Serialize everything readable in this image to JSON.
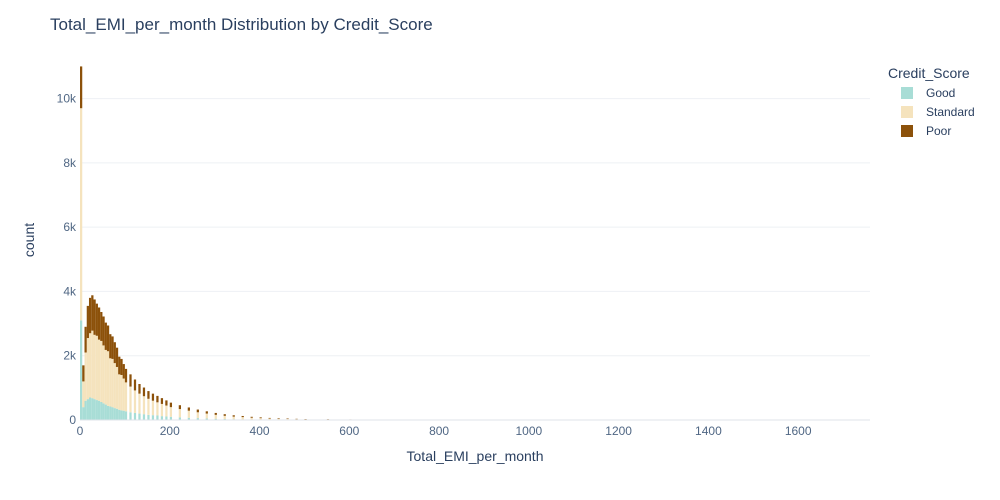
{
  "chart_data": {
    "type": "bar",
    "stacked": true,
    "title": "Total_EMI_per_month Distribution by Credit_Score",
    "xlabel": "Total_EMI_per_month",
    "ylabel": "count",
    "xlim": [
      0,
      1760
    ],
    "ylim": [
      0,
      11200
    ],
    "bin_width": 5,
    "x_ticks": [
      {
        "value": 0,
        "label": "0"
      },
      {
        "value": 200,
        "label": "200"
      },
      {
        "value": 400,
        "label": "400"
      },
      {
        "value": 600,
        "label": "600"
      },
      {
        "value": 800,
        "label": "800"
      },
      {
        "value": 1000,
        "label": "1000"
      },
      {
        "value": 1200,
        "label": "1200"
      },
      {
        "value": 1400,
        "label": "1400"
      },
      {
        "value": 1600,
        "label": "1600"
      }
    ],
    "y_ticks": [
      {
        "value": 0,
        "label": "0"
      },
      {
        "value": 2000,
        "label": "2k"
      },
      {
        "value": 4000,
        "label": "4k"
      },
      {
        "value": 6000,
        "label": "6k"
      },
      {
        "value": 8000,
        "label": "8k"
      },
      {
        "value": 10000,
        "label": "10k"
      }
    ],
    "grid": true,
    "legend": {
      "title": "Credit_Score",
      "placement": "top-right"
    },
    "series": [
      {
        "name": "Good",
        "color": "#a8ddd6",
        "points": [
          [
            0,
            3100
          ],
          [
            5,
            400
          ],
          [
            10,
            600
          ],
          [
            15,
            650
          ],
          [
            20,
            700
          ],
          [
            25,
            680
          ],
          [
            30,
            650
          ],
          [
            35,
            620
          ],
          [
            40,
            600
          ],
          [
            45,
            560
          ],
          [
            50,
            520
          ],
          [
            55,
            480
          ],
          [
            60,
            440
          ],
          [
            65,
            420
          ],
          [
            70,
            400
          ],
          [
            75,
            370
          ],
          [
            80,
            350
          ],
          [
            85,
            320
          ],
          [
            90,
            300
          ],
          [
            95,
            290
          ],
          [
            100,
            270
          ],
          [
            110,
            240
          ],
          [
            120,
            220
          ],
          [
            130,
            200
          ],
          [
            140,
            180
          ],
          [
            150,
            160
          ],
          [
            160,
            150
          ],
          [
            170,
            140
          ],
          [
            180,
            120
          ],
          [
            190,
            110
          ],
          [
            200,
            100
          ],
          [
            220,
            80
          ],
          [
            240,
            70
          ],
          [
            260,
            60
          ],
          [
            280,
            50
          ],
          [
            300,
            40
          ],
          [
            320,
            30
          ],
          [
            340,
            25
          ],
          [
            360,
            20
          ],
          [
            380,
            15
          ],
          [
            400,
            12
          ],
          [
            420,
            10
          ],
          [
            440,
            8
          ],
          [
            460,
            6
          ],
          [
            480,
            5
          ],
          [
            500,
            4
          ],
          [
            550,
            3
          ],
          [
            600,
            2
          ],
          [
            650,
            2
          ],
          [
            700,
            1
          ]
        ]
      },
      {
        "name": "Standard",
        "color": "#f5e3bd",
        "points": [
          [
            0,
            6600
          ],
          [
            5,
            800
          ],
          [
            10,
            1500
          ],
          [
            15,
            1900
          ],
          [
            20,
            2000
          ],
          [
            25,
            2100
          ],
          [
            30,
            2000
          ],
          [
            35,
            2000
          ],
          [
            40,
            1900
          ],
          [
            45,
            1900
          ],
          [
            50,
            1800
          ],
          [
            55,
            1700
          ],
          [
            60,
            1700
          ],
          [
            65,
            1500
          ],
          [
            70,
            1500
          ],
          [
            75,
            1400
          ],
          [
            80,
            1300
          ],
          [
            85,
            1100
          ],
          [
            90,
            1100
          ],
          [
            95,
            1000
          ],
          [
            100,
            900
          ],
          [
            110,
            800
          ],
          [
            120,
            700
          ],
          [
            130,
            620
          ],
          [
            140,
            560
          ],
          [
            150,
            500
          ],
          [
            160,
            450
          ],
          [
            170,
            410
          ],
          [
            180,
            380
          ],
          [
            190,
            340
          ],
          [
            200,
            300
          ],
          [
            220,
            260
          ],
          [
            240,
            220
          ],
          [
            260,
            180
          ],
          [
            280,
            150
          ],
          [
            300,
            120
          ],
          [
            320,
            100
          ],
          [
            340,
            80
          ],
          [
            360,
            70
          ],
          [
            380,
            55
          ],
          [
            400,
            45
          ],
          [
            420,
            35
          ],
          [
            440,
            30
          ],
          [
            460,
            25
          ],
          [
            480,
            20
          ],
          [
            500,
            16
          ],
          [
            550,
            12
          ],
          [
            600,
            9
          ],
          [
            650,
            7
          ],
          [
            700,
            5
          ]
        ]
      },
      {
        "name": "Poor",
        "color": "#8c510a",
        "points": [
          [
            0,
            1300
          ],
          [
            5,
            500
          ],
          [
            10,
            800
          ],
          [
            15,
            1000
          ],
          [
            20,
            1100
          ],
          [
            25,
            1100
          ],
          [
            30,
            1100
          ],
          [
            35,
            1000
          ],
          [
            40,
            1000
          ],
          [
            45,
            900
          ],
          [
            50,
            900
          ],
          [
            55,
            850
          ],
          [
            60,
            800
          ],
          [
            65,
            750
          ],
          [
            70,
            700
          ],
          [
            75,
            650
          ],
          [
            80,
            600
          ],
          [
            85,
            550
          ],
          [
            90,
            500
          ],
          [
            95,
            450
          ],
          [
            100,
            420
          ],
          [
            110,
            380
          ],
          [
            120,
            340
          ],
          [
            130,
            300
          ],
          [
            140,
            270
          ],
          [
            150,
            240
          ],
          [
            160,
            220
          ],
          [
            170,
            200
          ],
          [
            180,
            180
          ],
          [
            190,
            160
          ],
          [
            200,
            140
          ],
          [
            220,
            120
          ],
          [
            240,
            100
          ],
          [
            260,
            85
          ],
          [
            280,
            70
          ],
          [
            300,
            60
          ],
          [
            320,
            50
          ],
          [
            340,
            42
          ],
          [
            360,
            35
          ],
          [
            380,
            30
          ],
          [
            400,
            25
          ],
          [
            420,
            20
          ],
          [
            440,
            18
          ],
          [
            460,
            15
          ],
          [
            480,
            12
          ],
          [
            500,
            10
          ],
          [
            550,
            8
          ],
          [
            600,
            6
          ],
          [
            650,
            5
          ],
          [
            700,
            4
          ]
        ]
      }
    ]
  }
}
